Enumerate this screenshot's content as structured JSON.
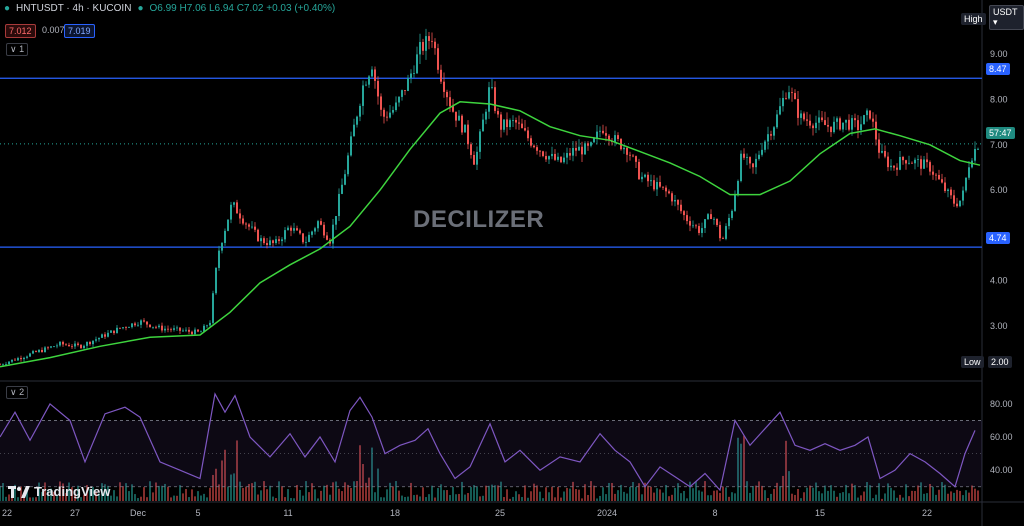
{
  "header": {
    "symbol": "HNTUSDT · 4h · KUCOIN",
    "ohlc": "O6.99  H7.06  L6.94  C7.02  +0.03 (+0.40%)"
  },
  "price_boxes": {
    "bid": "7.012",
    "spread": "0.007",
    "ask": "7.019"
  },
  "currency_button": "USDT ▾",
  "high_label": "High",
  "low_label": "Low",
  "low_value": "2.00",
  "pane1_label": "∨ 1",
  "pane2_label": "∨ 2",
  "level_upper_label": "8.47",
  "level_lower_label": "4.74",
  "countdown_label": "57:47",
  "watermark": "DECILIZER",
  "brand": "TradingView",
  "colors": {
    "up": "#26a69a",
    "down": "#ef5350",
    "ma": "#3ed43e",
    "rsi": "#7e57c2",
    "level": "#2962ff",
    "background": "#000000",
    "text": "#b2b5be"
  },
  "chart_data": [
    {
      "type": "candlestick",
      "price_axis_ticks": [
        3.0,
        4.0,
        5.0,
        6.0,
        7.0,
        8.0,
        9.0
      ],
      "x_tick_labels": [
        "22",
        "27",
        "Dec",
        "5",
        "11",
        "18",
        "25",
        "2024",
        "8",
        "15",
        "22"
      ],
      "horizontal_levels": [
        8.47,
        4.74
      ],
      "current_price": 7.02,
      "price_series": [
        {
          "x": 0,
          "y": 2.15
        },
        {
          "x": 20,
          "y": 2.3
        },
        {
          "x": 40,
          "y": 2.45
        },
        {
          "x": 60,
          "y": 2.6
        },
        {
          "x": 80,
          "y": 2.55
        },
        {
          "x": 100,
          "y": 2.75
        },
        {
          "x": 120,
          "y": 2.95
        },
        {
          "x": 140,
          "y": 3.1
        },
        {
          "x": 160,
          "y": 2.95
        },
        {
          "x": 180,
          "y": 2.9
        },
        {
          "x": 200,
          "y": 2.85
        },
        {
          "x": 210,
          "y": 3.1
        },
        {
          "x": 218,
          "y": 4.6
        },
        {
          "x": 232,
          "y": 5.7
        },
        {
          "x": 245,
          "y": 5.3
        },
        {
          "x": 260,
          "y": 4.9
        },
        {
          "x": 275,
          "y": 4.8
        },
        {
          "x": 290,
          "y": 5.2
        },
        {
          "x": 305,
          "y": 4.85
        },
        {
          "x": 318,
          "y": 5.3
        },
        {
          "x": 330,
          "y": 4.9
        },
        {
          "x": 345,
          "y": 6.4
        },
        {
          "x": 355,
          "y": 7.5
        },
        {
          "x": 363,
          "y": 8.3
        },
        {
          "x": 372,
          "y": 8.8
        },
        {
          "x": 382,
          "y": 7.6
        },
        {
          "x": 395,
          "y": 7.8
        },
        {
          "x": 408,
          "y": 8.4
        },
        {
          "x": 420,
          "y": 9.1
        },
        {
          "x": 432,
          "y": 9.4
        },
        {
          "x": 440,
          "y": 8.6
        },
        {
          "x": 452,
          "y": 7.8
        },
        {
          "x": 465,
          "y": 7.3
        },
        {
          "x": 475,
          "y": 6.6
        },
        {
          "x": 490,
          "y": 8.3
        },
        {
          "x": 500,
          "y": 7.4
        },
        {
          "x": 515,
          "y": 7.5
        },
        {
          "x": 530,
          "y": 7.1
        },
        {
          "x": 545,
          "y": 6.8
        },
        {
          "x": 560,
          "y": 6.6
        },
        {
          "x": 575,
          "y": 6.9
        },
        {
          "x": 590,
          "y": 6.9
        },
        {
          "x": 602,
          "y": 7.4
        },
        {
          "x": 615,
          "y": 7.1
        },
        {
          "x": 628,
          "y": 6.9
        },
        {
          "x": 640,
          "y": 6.3
        },
        {
          "x": 655,
          "y": 6.1
        },
        {
          "x": 670,
          "y": 5.9
        },
        {
          "x": 685,
          "y": 5.4
        },
        {
          "x": 700,
          "y": 5.1
        },
        {
          "x": 712,
          "y": 5.5
        },
        {
          "x": 722,
          "y": 4.85
        },
        {
          "x": 732,
          "y": 5.6
        },
        {
          "x": 742,
          "y": 6.8
        },
        {
          "x": 752,
          "y": 6.4
        },
        {
          "x": 762,
          "y": 7.0
        },
        {
          "x": 775,
          "y": 7.5
        },
        {
          "x": 788,
          "y": 8.3
        },
        {
          "x": 800,
          "y": 7.6
        },
        {
          "x": 815,
          "y": 7.5
        },
        {
          "x": 830,
          "y": 7.4
        },
        {
          "x": 845,
          "y": 7.5
        },
        {
          "x": 858,
          "y": 7.4
        },
        {
          "x": 870,
          "y": 7.7
        },
        {
          "x": 880,
          "y": 6.8
        },
        {
          "x": 892,
          "y": 6.5
        },
        {
          "x": 905,
          "y": 6.7
        },
        {
          "x": 918,
          "y": 6.6
        },
        {
          "x": 930,
          "y": 6.5
        },
        {
          "x": 942,
          "y": 6.1
        },
        {
          "x": 955,
          "y": 5.7
        },
        {
          "x": 962,
          "y": 5.8
        },
        {
          "x": 970,
          "y": 6.7
        },
        {
          "x": 978,
          "y": 7.02
        }
      ],
      "ma_series": [
        {
          "x": 0,
          "y": 2.1
        },
        {
          "x": 50,
          "y": 2.3
        },
        {
          "x": 100,
          "y": 2.55
        },
        {
          "x": 150,
          "y": 2.75
        },
        {
          "x": 200,
          "y": 2.8
        },
        {
          "x": 230,
          "y": 3.3
        },
        {
          "x": 260,
          "y": 3.95
        },
        {
          "x": 290,
          "y": 4.35
        },
        {
          "x": 320,
          "y": 4.7
        },
        {
          "x": 350,
          "y": 5.2
        },
        {
          "x": 380,
          "y": 6.0
        },
        {
          "x": 410,
          "y": 6.9
        },
        {
          "x": 440,
          "y": 7.7
        },
        {
          "x": 460,
          "y": 7.95
        },
        {
          "x": 490,
          "y": 7.9
        },
        {
          "x": 520,
          "y": 7.75
        },
        {
          "x": 550,
          "y": 7.4
        },
        {
          "x": 580,
          "y": 7.2
        },
        {
          "x": 610,
          "y": 7.1
        },
        {
          "x": 640,
          "y": 6.85
        },
        {
          "x": 670,
          "y": 6.6
        },
        {
          "x": 700,
          "y": 6.3
        },
        {
          "x": 730,
          "y": 5.9
        },
        {
          "x": 760,
          "y": 5.9
        },
        {
          "x": 790,
          "y": 6.2
        },
        {
          "x": 820,
          "y": 6.8
        },
        {
          "x": 850,
          "y": 7.25
        },
        {
          "x": 875,
          "y": 7.35
        },
        {
          "x": 900,
          "y": 7.2
        },
        {
          "x": 930,
          "y": 7.0
        },
        {
          "x": 960,
          "y": 6.65
        },
        {
          "x": 980,
          "y": 6.55
        }
      ]
    },
    {
      "type": "line",
      "indicator": "rsi",
      "y_ticks": [
        40.0,
        60.0,
        80.0
      ],
      "levels": [
        70,
        30
      ],
      "rsi_series": [
        {
          "x": 0,
          "y": 60
        },
        {
          "x": 15,
          "y": 75
        },
        {
          "x": 30,
          "y": 58
        },
        {
          "x": 50,
          "y": 80
        },
        {
          "x": 70,
          "y": 70
        },
        {
          "x": 85,
          "y": 45
        },
        {
          "x": 105,
          "y": 74
        },
        {
          "x": 125,
          "y": 78
        },
        {
          "x": 140,
          "y": 72
        },
        {
          "x": 160,
          "y": 45
        },
        {
          "x": 180,
          "y": 40
        },
        {
          "x": 200,
          "y": 35
        },
        {
          "x": 215,
          "y": 86
        },
        {
          "x": 225,
          "y": 75
        },
        {
          "x": 235,
          "y": 85
        },
        {
          "x": 250,
          "y": 60
        },
        {
          "x": 270,
          "y": 48
        },
        {
          "x": 290,
          "y": 62
        },
        {
          "x": 305,
          "y": 48
        },
        {
          "x": 320,
          "y": 60
        },
        {
          "x": 335,
          "y": 45
        },
        {
          "x": 350,
          "y": 76
        },
        {
          "x": 360,
          "y": 84
        },
        {
          "x": 372,
          "y": 72
        },
        {
          "x": 385,
          "y": 50
        },
        {
          "x": 400,
          "y": 55
        },
        {
          "x": 415,
          "y": 58
        },
        {
          "x": 428,
          "y": 65
        },
        {
          "x": 440,
          "y": 50
        },
        {
          "x": 455,
          "y": 35
        },
        {
          "x": 470,
          "y": 42
        },
        {
          "x": 490,
          "y": 68
        },
        {
          "x": 505,
          "y": 45
        },
        {
          "x": 520,
          "y": 52
        },
        {
          "x": 540,
          "y": 40
        },
        {
          "x": 560,
          "y": 48
        },
        {
          "x": 580,
          "y": 45
        },
        {
          "x": 600,
          "y": 62
        },
        {
          "x": 615,
          "y": 52
        },
        {
          "x": 630,
          "y": 45
        },
        {
          "x": 645,
          "y": 30
        },
        {
          "x": 660,
          "y": 42
        },
        {
          "x": 675,
          "y": 36
        },
        {
          "x": 690,
          "y": 30
        },
        {
          "x": 705,
          "y": 38
        },
        {
          "x": 720,
          "y": 28
        },
        {
          "x": 735,
          "y": 70
        },
        {
          "x": 750,
          "y": 55
        },
        {
          "x": 765,
          "y": 65
        },
        {
          "x": 780,
          "y": 75
        },
        {
          "x": 795,
          "y": 55
        },
        {
          "x": 810,
          "y": 52
        },
        {
          "x": 825,
          "y": 56
        },
        {
          "x": 840,
          "y": 52
        },
        {
          "x": 855,
          "y": 55
        },
        {
          "x": 868,
          "y": 60
        },
        {
          "x": 880,
          "y": 35
        },
        {
          "x": 895,
          "y": 40
        },
        {
          "x": 910,
          "y": 50
        },
        {
          "x": 925,
          "y": 45
        },
        {
          "x": 940,
          "y": 38
        },
        {
          "x": 955,
          "y": 30
        },
        {
          "x": 965,
          "y": 50
        },
        {
          "x": 975,
          "y": 64
        }
      ]
    }
  ]
}
